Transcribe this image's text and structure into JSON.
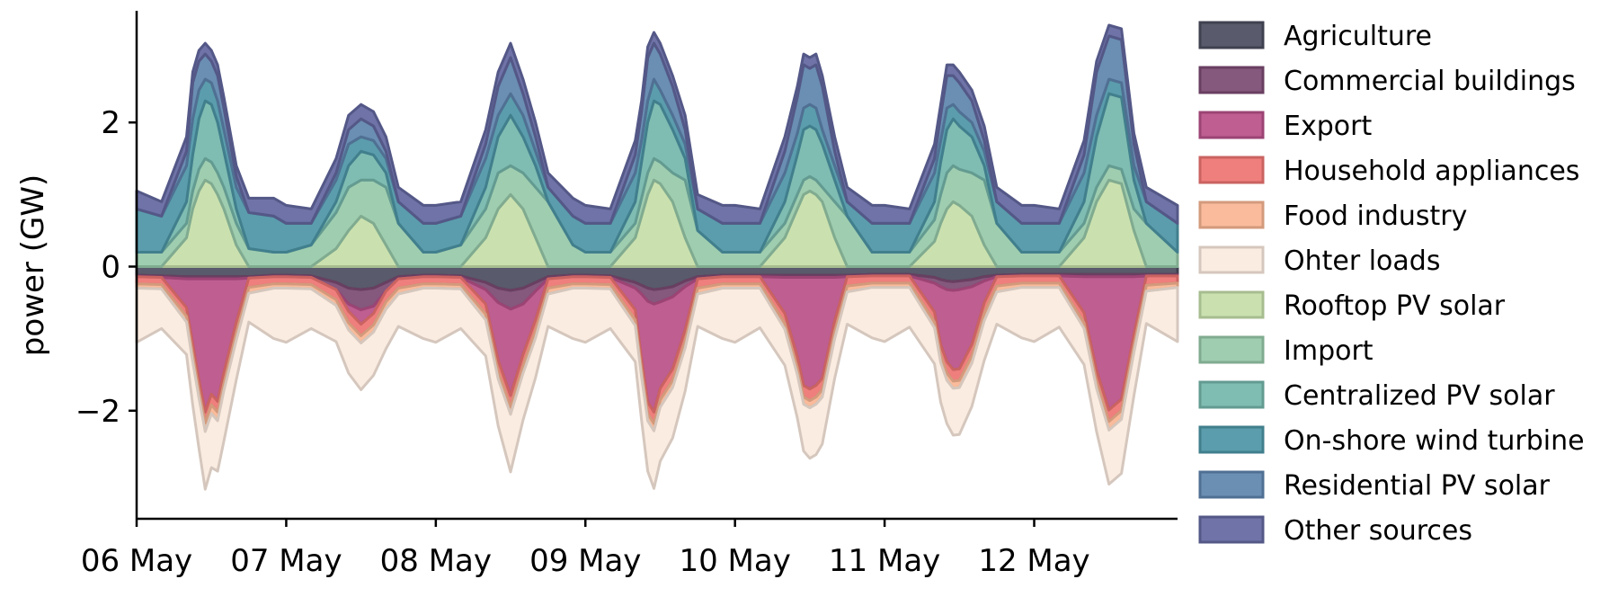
{
  "chart_data": {
    "type": "area",
    "title": "",
    "xlabel": "",
    "ylabel": "power (GW)",
    "xticks": [
      "06 May",
      "07 May",
      "08 May",
      "09 May",
      "10 May",
      "11 May",
      "12 May"
    ],
    "xlim": [
      "2022-05-06 00:00",
      "2022-05-12 23:00"
    ],
    "ylim": [
      -3.5,
      3.55
    ],
    "yticks": [
      -2,
      0,
      2
    ],
    "ytick_labels": [
      "−2",
      "0",
      "2"
    ],
    "grid": false,
    "legend_position": "right",
    "x": [
      "06 May 00h",
      "06 May 04h",
      "06 May 08h",
      "06 May 09h",
      "06 May 10h",
      "06 May 11h",
      "06 May 12h",
      "06 May 13h",
      "06 May 14h",
      "06 May 16h",
      "06 May 18h",
      "06 May 22h",
      "07 May 00h",
      "07 May 04h",
      "07 May 08h",
      "07 May 10h",
      "07 May 12h",
      "07 May 14h",
      "07 May 16h",
      "07 May 18h",
      "07 May 22h",
      "08 May 00h",
      "08 May 04h",
      "08 May 08h",
      "08 May 10h",
      "08 May 12h",
      "08 May 14h",
      "08 May 16h",
      "08 May 18h",
      "08 May 22h",
      "09 May 00h",
      "09 May 04h",
      "09 May 08h",
      "09 May 09h",
      "09 May 10h",
      "09 May 11h",
      "09 May 12h",
      "09 May 14h",
      "09 May 16h",
      "09 May 18h",
      "09 May 22h",
      "10 May 00h",
      "10 May 04h",
      "10 May 08h",
      "10 May 10h",
      "10 May 11h",
      "10 May 12h",
      "10 May 13h",
      "10 May 14h",
      "10 May 16h",
      "10 May 18h",
      "10 May 22h",
      "11 May 00h",
      "11 May 04h",
      "11 May 08h",
      "11 May 09h",
      "11 May 10h",
      "11 May 11h",
      "11 May 12h",
      "11 May 14h",
      "11 May 16h",
      "11 May 18h",
      "11 May 22h",
      "12 May 00h",
      "12 May 04h",
      "12 May 08h",
      "12 May 10h",
      "12 May 12h",
      "12 May 14h",
      "12 May 16h",
      "12 May 18h",
      "12 May 23h"
    ],
    "series": [
      {
        "name": "Agriculture",
        "group": "demand",
        "color": "#4b4c5e",
        "values": [
          -0.12,
          -0.13,
          -0.14,
          -0.14,
          -0.14,
          -0.14,
          -0.14,
          -0.14,
          -0.14,
          -0.14,
          -0.14,
          -0.12,
          -0.12,
          -0.13,
          -0.22,
          -0.3,
          -0.32,
          -0.3,
          -0.22,
          -0.14,
          -0.12,
          -0.12,
          -0.13,
          -0.22,
          -0.3,
          -0.33,
          -0.3,
          -0.22,
          -0.14,
          -0.12,
          -0.12,
          -0.13,
          -0.22,
          -0.26,
          -0.3,
          -0.32,
          -0.31,
          -0.28,
          -0.2,
          -0.14,
          -0.12,
          -0.12,
          -0.12,
          -0.12,
          -0.12,
          -0.12,
          -0.12,
          -0.12,
          -0.12,
          -0.12,
          -0.12,
          -0.11,
          -0.11,
          -0.11,
          -0.15,
          -0.18,
          -0.2,
          -0.21,
          -0.2,
          -0.18,
          -0.14,
          -0.12,
          -0.11,
          -0.11,
          -0.11,
          -0.11,
          -0.11,
          -0.11,
          -0.11,
          -0.11,
          -0.11,
          -0.11
        ]
      },
      {
        "name": "Commercial buildings",
        "group": "demand",
        "color": "#7b4a72",
        "values": [
          -0.02,
          -0.02,
          -0.03,
          -0.03,
          -0.03,
          -0.03,
          -0.03,
          -0.03,
          -0.03,
          -0.03,
          -0.02,
          -0.02,
          -0.02,
          -0.02,
          -0.1,
          -0.22,
          -0.28,
          -0.25,
          -0.12,
          -0.03,
          -0.02,
          -0.02,
          -0.02,
          -0.1,
          -0.2,
          -0.26,
          -0.22,
          -0.12,
          -0.03,
          -0.02,
          -0.02,
          -0.02,
          -0.08,
          -0.12,
          -0.18,
          -0.2,
          -0.18,
          -0.14,
          -0.08,
          -0.03,
          -0.02,
          -0.02,
          -0.02,
          -0.03,
          -0.03,
          -0.03,
          -0.03,
          -0.03,
          -0.03,
          -0.03,
          -0.02,
          -0.02,
          -0.02,
          -0.02,
          -0.08,
          -0.1,
          -0.12,
          -0.12,
          -0.12,
          -0.1,
          -0.06,
          -0.02,
          -0.02,
          -0.02,
          -0.02,
          -0.03,
          -0.03,
          -0.03,
          -0.03,
          -0.03,
          -0.02,
          -0.02
        ]
      },
      {
        "name": "Export",
        "group": "demand",
        "color": "#b85088",
        "values": [
          0,
          0,
          -0.4,
          -0.9,
          -1.4,
          -1.85,
          -1.6,
          -1.7,
          -1.3,
          -0.6,
          0,
          0,
          0,
          0,
          0,
          -0.1,
          -0.2,
          -0.1,
          0,
          0,
          0,
          0,
          0,
          -0.2,
          -0.8,
          -1.2,
          -0.7,
          -0.4,
          0,
          0,
          0,
          0,
          -0.3,
          -0.9,
          -1.4,
          -1.5,
          -1.2,
          -1.0,
          -0.6,
          0,
          0,
          0,
          0,
          -0.5,
          -1.1,
          -1.5,
          -1.55,
          -1.5,
          -1.4,
          -0.6,
          0,
          0,
          0,
          0,
          -0.4,
          -0.8,
          -1.0,
          -1.1,
          -1.1,
          -0.8,
          -0.3,
          0,
          0,
          0,
          0,
          -0.5,
          -1.3,
          -1.85,
          -1.7,
          -0.8,
          0,
          0
        ]
      },
      {
        "name": "Household appliances",
        "group": "demand",
        "color": "#ee7472",
        "values": [
          -0.1,
          -0.1,
          -0.12,
          -0.15,
          -0.15,
          -0.15,
          -0.15,
          -0.15,
          -0.15,
          -0.15,
          -0.13,
          -0.1,
          -0.1,
          -0.1,
          -0.14,
          -0.16,
          -0.16,
          -0.16,
          -0.15,
          -0.13,
          -0.1,
          -0.1,
          -0.1,
          -0.14,
          -0.16,
          -0.16,
          -0.16,
          -0.15,
          -0.13,
          -0.1,
          -0.1,
          -0.1,
          -0.14,
          -0.15,
          -0.16,
          -0.16,
          -0.16,
          -0.16,
          -0.15,
          -0.13,
          -0.1,
          -0.1,
          -0.1,
          -0.14,
          -0.15,
          -0.16,
          -0.16,
          -0.16,
          -0.16,
          -0.15,
          -0.13,
          -0.1,
          -0.1,
          -0.1,
          -0.14,
          -0.15,
          -0.16,
          -0.16,
          -0.16,
          -0.16,
          -0.15,
          -0.13,
          -0.1,
          -0.1,
          -0.1,
          -0.14,
          -0.15,
          -0.16,
          -0.16,
          -0.15,
          -0.13,
          -0.1
        ]
      },
      {
        "name": "Food industry",
        "group": "demand",
        "color": "#f8b592",
        "values": [
          -0.06,
          -0.06,
          -0.08,
          -0.1,
          -0.1,
          -0.12,
          -0.12,
          -0.12,
          -0.1,
          -0.1,
          -0.08,
          -0.06,
          -0.06,
          -0.06,
          -0.08,
          -0.1,
          -0.1,
          -0.1,
          -0.1,
          -0.08,
          -0.06,
          -0.06,
          -0.06,
          -0.08,
          -0.1,
          -0.1,
          -0.1,
          -0.1,
          -0.08,
          -0.06,
          -0.06,
          -0.06,
          -0.08,
          -0.1,
          -0.1,
          -0.1,
          -0.1,
          -0.1,
          -0.1,
          -0.08,
          -0.06,
          -0.06,
          -0.06,
          -0.08,
          -0.1,
          -0.1,
          -0.1,
          -0.1,
          -0.1,
          -0.1,
          -0.08,
          -0.06,
          -0.06,
          -0.06,
          -0.08,
          -0.1,
          -0.1,
          -0.1,
          -0.1,
          -0.1,
          -0.1,
          -0.08,
          -0.06,
          -0.06,
          -0.06,
          -0.08,
          -0.1,
          -0.12,
          -0.12,
          -0.1,
          -0.08,
          -0.06
        ]
      },
      {
        "name": "Ohter loads",
        "group": "demand",
        "color": "#fbeade",
        "values": [
          -0.75,
          -0.55,
          -0.45,
          -0.6,
          -0.7,
          -0.8,
          -0.75,
          -0.7,
          -0.7,
          -0.55,
          -0.4,
          -0.7,
          -0.75,
          -0.55,
          -0.5,
          -0.6,
          -0.65,
          -0.6,
          -0.55,
          -0.45,
          -0.7,
          -0.75,
          -0.55,
          -0.5,
          -0.65,
          -0.8,
          -0.65,
          -0.55,
          -0.45,
          -0.7,
          -0.75,
          -0.55,
          -0.5,
          -0.6,
          -0.7,
          -0.8,
          -0.75,
          -0.7,
          -0.6,
          -0.45,
          -0.7,
          -0.75,
          -0.55,
          -0.5,
          -0.6,
          -0.65,
          -0.7,
          -0.7,
          -0.65,
          -0.55,
          -0.45,
          -0.7,
          -0.75,
          -0.55,
          -0.5,
          -0.55,
          -0.6,
          -0.65,
          -0.65,
          -0.6,
          -0.55,
          -0.45,
          -0.7,
          -0.75,
          -0.55,
          -0.5,
          -0.6,
          -0.75,
          -0.75,
          -0.6,
          -0.45,
          -0.75
        ]
      },
      {
        "name": "Rooftop PV solar",
        "group": "supply",
        "color": "#c5dea8",
        "values": [
          0,
          0,
          0.4,
          0.8,
          1.05,
          1.2,
          1.15,
          1.0,
          0.8,
          0.3,
          0,
          0,
          0,
          0,
          0.25,
          0.5,
          0.7,
          0.6,
          0.3,
          0,
          0,
          0,
          0,
          0.4,
          0.8,
          1.0,
          0.8,
          0.4,
          0,
          0,
          0,
          0,
          0.4,
          0.7,
          1.0,
          1.2,
          1.15,
          0.9,
          0.4,
          0,
          0,
          0,
          0,
          0.4,
          0.8,
          1.0,
          1.05,
          1.0,
          0.9,
          0.4,
          0,
          0,
          0,
          0,
          0.35,
          0.6,
          0.8,
          0.9,
          0.85,
          0.7,
          0.3,
          0,
          0,
          0,
          0,
          0.4,
          0.9,
          1.2,
          1.15,
          0.5,
          0,
          0
        ]
      },
      {
        "name": "Import",
        "group": "supply",
        "color": "#97c9a9",
        "values": [
          0.2,
          0.2,
          0.2,
          0.25,
          0.3,
          0.3,
          0.3,
          0.3,
          0.3,
          0.3,
          0.25,
          0.2,
          0.2,
          0.3,
          0.5,
          0.6,
          0.5,
          0.6,
          0.8,
          0.6,
          0.2,
          0.2,
          0.3,
          0.4,
          0.5,
          0.4,
          0.5,
          0.7,
          0.9,
          0.3,
          0.2,
          0.2,
          0.2,
          0.25,
          0.3,
          0.3,
          0.3,
          0.4,
          0.8,
          0.5,
          0.2,
          0.2,
          0.2,
          0.2,
          0.2,
          0.2,
          0.2,
          0.2,
          0.2,
          0.5,
          0.7,
          0.2,
          0.2,
          0.2,
          0.3,
          0.4,
          0.5,
          0.5,
          0.5,
          0.6,
          0.9,
          0.6,
          0.2,
          0.2,
          0.2,
          0.2,
          0.2,
          0.2,
          0.2,
          0.3,
          0.6,
          0.2
        ]
      },
      {
        "name": "Centralized PV solar",
        "group": "supply",
        "color": "#74b6ab",
        "values": [
          0,
          0,
          0.3,
          0.5,
          0.7,
          0.8,
          0.8,
          0.7,
          0.5,
          0.2,
          0,
          0,
          0,
          0,
          0.15,
          0.3,
          0.4,
          0.35,
          0.2,
          0,
          0,
          0,
          0,
          0.3,
          0.5,
          0.7,
          0.5,
          0.3,
          0,
          0,
          0,
          0,
          0.3,
          0.5,
          0.7,
          0.8,
          0.8,
          0.6,
          0.3,
          0,
          0,
          0,
          0,
          0.3,
          0.55,
          0.7,
          0.7,
          0.7,
          0.6,
          0.3,
          0,
          0,
          0,
          0,
          0.25,
          0.45,
          0.6,
          0.65,
          0.6,
          0.5,
          0.2,
          0,
          0,
          0,
          0,
          0.3,
          0.7,
          1.0,
          1.0,
          0.4,
          0,
          0
        ]
      },
      {
        "name": "On-shore wind turbine",
        "group": "supply",
        "color": "#4d95a6",
        "values": [
          0.6,
          0.5,
          0.5,
          0.5,
          0.4,
          0.3,
          0.3,
          0.3,
          0.3,
          0.3,
          0.5,
          0.5,
          0.4,
          0.3,
          0.3,
          0.3,
          0.2,
          0.2,
          0.2,
          0.3,
          0.4,
          0.4,
          0.4,
          0.4,
          0.3,
          0.3,
          0.3,
          0.2,
          0.2,
          0.4,
          0.4,
          0.4,
          0.4,
          0.3,
          0.3,
          0.3,
          0.2,
          0.2,
          0.2,
          0.3,
          0.4,
          0.4,
          0.4,
          0.4,
          0.3,
          0.3,
          0.3,
          0.3,
          0.2,
          0.2,
          0.2,
          0.4,
          0.4,
          0.4,
          0.4,
          0.3,
          0.3,
          0.2,
          0.2,
          0.2,
          0.2,
          0.3,
          0.4,
          0.4,
          0.4,
          0.4,
          0.3,
          0.2,
          0.2,
          0.2,
          0.3,
          0.4
        ]
      },
      {
        "name": "Residential PV solar",
        "group": "supply",
        "color": "#5e84ad",
        "values": [
          0,
          0,
          0.2,
          0.5,
          0.4,
          0.35,
          0.3,
          0.35,
          0.3,
          0.15,
          0,
          0,
          0,
          0,
          0.1,
          0.2,
          0.25,
          0.2,
          0.1,
          0,
          0,
          0,
          0,
          0.2,
          0.4,
          0.5,
          0.3,
          0.2,
          0,
          0,
          0,
          0,
          0.25,
          0.4,
          0.6,
          0.5,
          0.5,
          0.4,
          0.2,
          0,
          0,
          0,
          0,
          0.3,
          0.5,
          0.6,
          0.5,
          0.6,
          0.6,
          0.2,
          0,
          0,
          0,
          0,
          0.2,
          0.35,
          0.45,
          0.4,
          0.4,
          0.3,
          0.15,
          0,
          0,
          0,
          0,
          0.25,
          0.6,
          0.6,
          0.6,
          0.3,
          0,
          0
        ]
      },
      {
        "name": "Other sources",
        "group": "supply",
        "color": "#63679f",
        "values": [
          0.25,
          0.2,
          0.2,
          0.15,
          0.15,
          0.15,
          0.15,
          0.15,
          0.15,
          0.15,
          0.2,
          0.25,
          0.25,
          0.2,
          0.2,
          0.2,
          0.2,
          0.2,
          0.2,
          0.2,
          0.25,
          0.25,
          0.2,
          0.2,
          0.2,
          0.2,
          0.2,
          0.2,
          0.2,
          0.25,
          0.25,
          0.2,
          0.2,
          0.15,
          0.15,
          0.15,
          0.15,
          0.15,
          0.2,
          0.2,
          0.25,
          0.25,
          0.2,
          0.2,
          0.15,
          0.15,
          0.15,
          0.15,
          0.15,
          0.2,
          0.2,
          0.25,
          0.25,
          0.2,
          0.2,
          0.15,
          0.15,
          0.15,
          0.15,
          0.15,
          0.2,
          0.2,
          0.25,
          0.25,
          0.2,
          0.2,
          0.15,
          0.15,
          0.15,
          0.15,
          0.2,
          0.25
        ]
      }
    ]
  }
}
